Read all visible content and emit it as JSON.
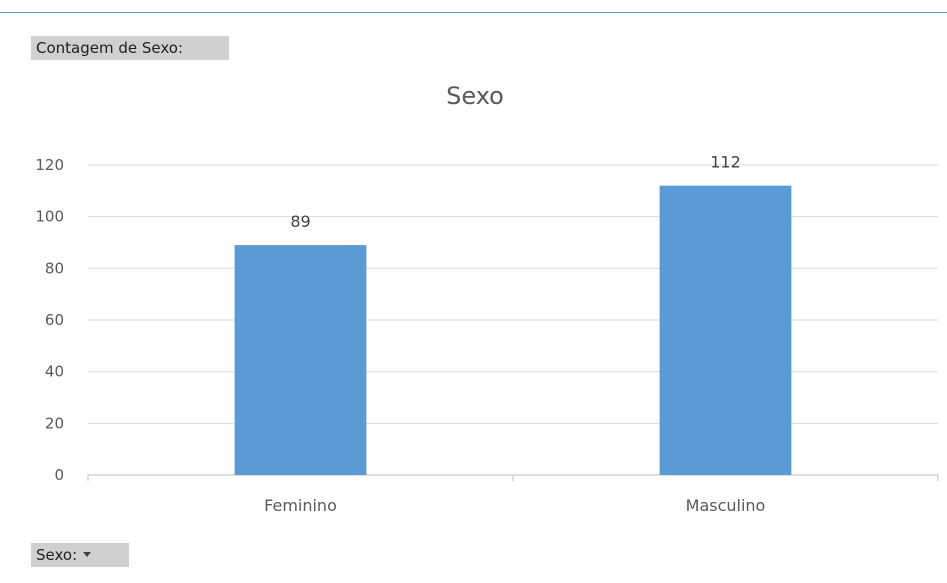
{
  "pivot": {
    "value_field_label": "Contagem de Sexo:",
    "axis_field_label": "Sexo:"
  },
  "colors": {
    "bar": "#5b9bd5",
    "gridline": "#d9d9d9",
    "axis": "#bfbfbf",
    "field_button": "#d0d0d0"
  },
  "chart_data": {
    "type": "bar",
    "title": "Sexo",
    "categories": [
      "Feminino",
      "Masculino"
    ],
    "values": [
      89,
      112
    ],
    "data_labels": [
      "89",
      "112"
    ],
    "ylim": [
      0,
      120
    ],
    "yticks": [
      0,
      20,
      40,
      60,
      80,
      100,
      120
    ],
    "grid": true,
    "legend": "none"
  }
}
